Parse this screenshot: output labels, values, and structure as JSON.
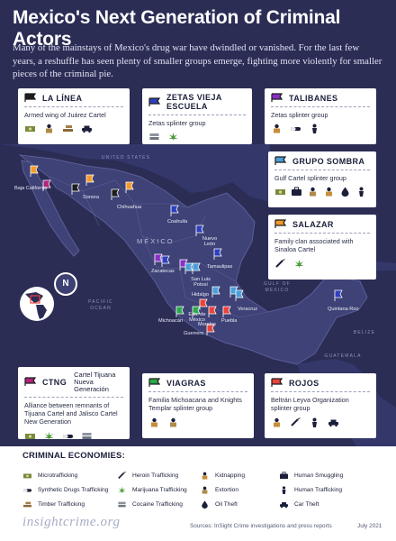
{
  "title": "Mexico's Next Generation of Criminal Actors",
  "intro": "Many of the mainstays of Mexico's drug war have dwindled or vanished. For the last few years, a reshuffle has seen plenty of smaller groups emerge, fighting more violently for smaller pieces of the criminal pie.",
  "colors": {
    "background": "#2b2d55",
    "map_land": "#3f4276",
    "accent_red": "#e8423b"
  },
  "groups": [
    {
      "name": "LA LÍNEA",
      "alias": "",
      "flag_color": "#1d1d1d",
      "description": "Armed wing of Juárez Cartel",
      "icons": [
        "microtrafficking-icon",
        "extortion-icon",
        "timber-trafficking-icon",
        "car-theft-icon"
      ]
    },
    {
      "name": "ZETAS VIEJA ESCUELA",
      "alias": "",
      "flag_color": "#2e3fbf",
      "description": "Zetas splinter group",
      "icons": [
        "cocaine-trafficking-icon",
        "marijuana-trafficking-icon"
      ]
    },
    {
      "name": "TALIBANES",
      "alias": "",
      "flag_color": "#8b2fc9",
      "description": "Zetas splinter group",
      "icons": [
        "kidnapping-icon",
        "synthetic-drugs-trafficking-icon",
        "human-trafficking-icon"
      ]
    },
    {
      "name": "GRUPO SOMBRA",
      "alias": "",
      "flag_color": "#4a9fd8",
      "description": "Gulf Cartel splinter group",
      "icons": [
        "microtrafficking-icon",
        "human-smuggling-icon",
        "extortion-icon",
        "kidnapping-icon",
        "oil-theft-icon",
        "human-trafficking-icon"
      ]
    },
    {
      "name": "SALAZAR",
      "alias": "",
      "flag_color": "#f39a2b",
      "description": "Family clan associated with Sinaloa Cartel",
      "icons": [
        "heroin-trafficking-icon",
        "marijuana-trafficking-icon"
      ]
    },
    {
      "name": "CTNG",
      "alias": "Cartel Tijuana Nueva Generación",
      "flag_color": "#b0247a",
      "description": "Alliance between remnants of Tijuana Cartel and Jalisco Cartel New Generation",
      "icons": [
        "microtrafficking-icon",
        "marijuana-trafficking-icon",
        "synthetic-drugs-trafficking-icon",
        "cocaine-trafficking-icon"
      ]
    },
    {
      "name": "VIAGRAS",
      "alias": "",
      "flag_color": "#2aa84a",
      "description": "Familia Michoacana and Knights Templar splinter group",
      "icons": [
        "kidnapping-icon",
        "extortion-icon"
      ]
    },
    {
      "name": "ROJOS",
      "alias": "",
      "flag_color": "#e8423b",
      "description": "Beltrán Leyva Organization splinter group",
      "icons": [
        "kidnapping-icon",
        "heroin-trafficking-icon",
        "human-trafficking-icon",
        "car-theft-icon"
      ]
    }
  ],
  "map": {
    "country": "MÉXICO",
    "labels": {
      "us": "UNITED STATES",
      "gulf": "GULF OF MEXICO",
      "pacific": "PACIFIC OCEAN",
      "belize": "BELIZE",
      "guatemala": "GUATEMALA"
    },
    "compass": "N",
    "cities": {
      "baja_california": "Baja California",
      "sonora": "Sonora",
      "chihuahua": "Chihuahua",
      "coahuila": "Coahuila",
      "nuevo_leon": "Nuevo León",
      "tamaulipas": "Tamaulipas",
      "zacatecas": "Zacatecas",
      "san_luis_potosi": "San Luis Potosí",
      "hidalgo": "Hidalgo",
      "veracruz": "Veracruz",
      "mexico_state": "Edo. de México",
      "morelos": "Morelos",
      "puebla": "Puebla",
      "michoacan": "Michoacán",
      "guerrero": "Guerrero",
      "quintana_roo": "Quintana Roo"
    }
  },
  "legend": {
    "title": "CRIMINAL ECONOMIES:",
    "items": [
      {
        "label": "Microtrafficking",
        "icon": "microtrafficking-icon"
      },
      {
        "label": "Synthetic Drugs Trafficking",
        "icon": "synthetic-drugs-trafficking-icon"
      },
      {
        "label": "Timber Trafficking",
        "icon": "timber-trafficking-icon"
      },
      {
        "label": "Heroin Trafficking",
        "icon": "heroin-trafficking-icon"
      },
      {
        "label": "Marijuana Trafficking",
        "icon": "marijuana-trafficking-icon"
      },
      {
        "label": "Cocaine Trafficking",
        "icon": "cocaine-trafficking-icon"
      },
      {
        "label": "Kidnapping",
        "icon": "kidnapping-icon"
      },
      {
        "label": "Extortion",
        "icon": "extortion-icon"
      },
      {
        "label": "Oil Theft",
        "icon": "oil-theft-icon"
      },
      {
        "label": "Human Smuggling",
        "icon": "human-smuggling-icon"
      },
      {
        "label": "Human Trafficking",
        "icon": "human-trafficking-icon"
      },
      {
        "label": "Car Theft",
        "icon": "car-theft-icon"
      }
    ]
  },
  "footer": {
    "brand": "insightcrime.org",
    "source": "Sources: InSight Crime investigations and press reports",
    "date": "July 2021"
  }
}
